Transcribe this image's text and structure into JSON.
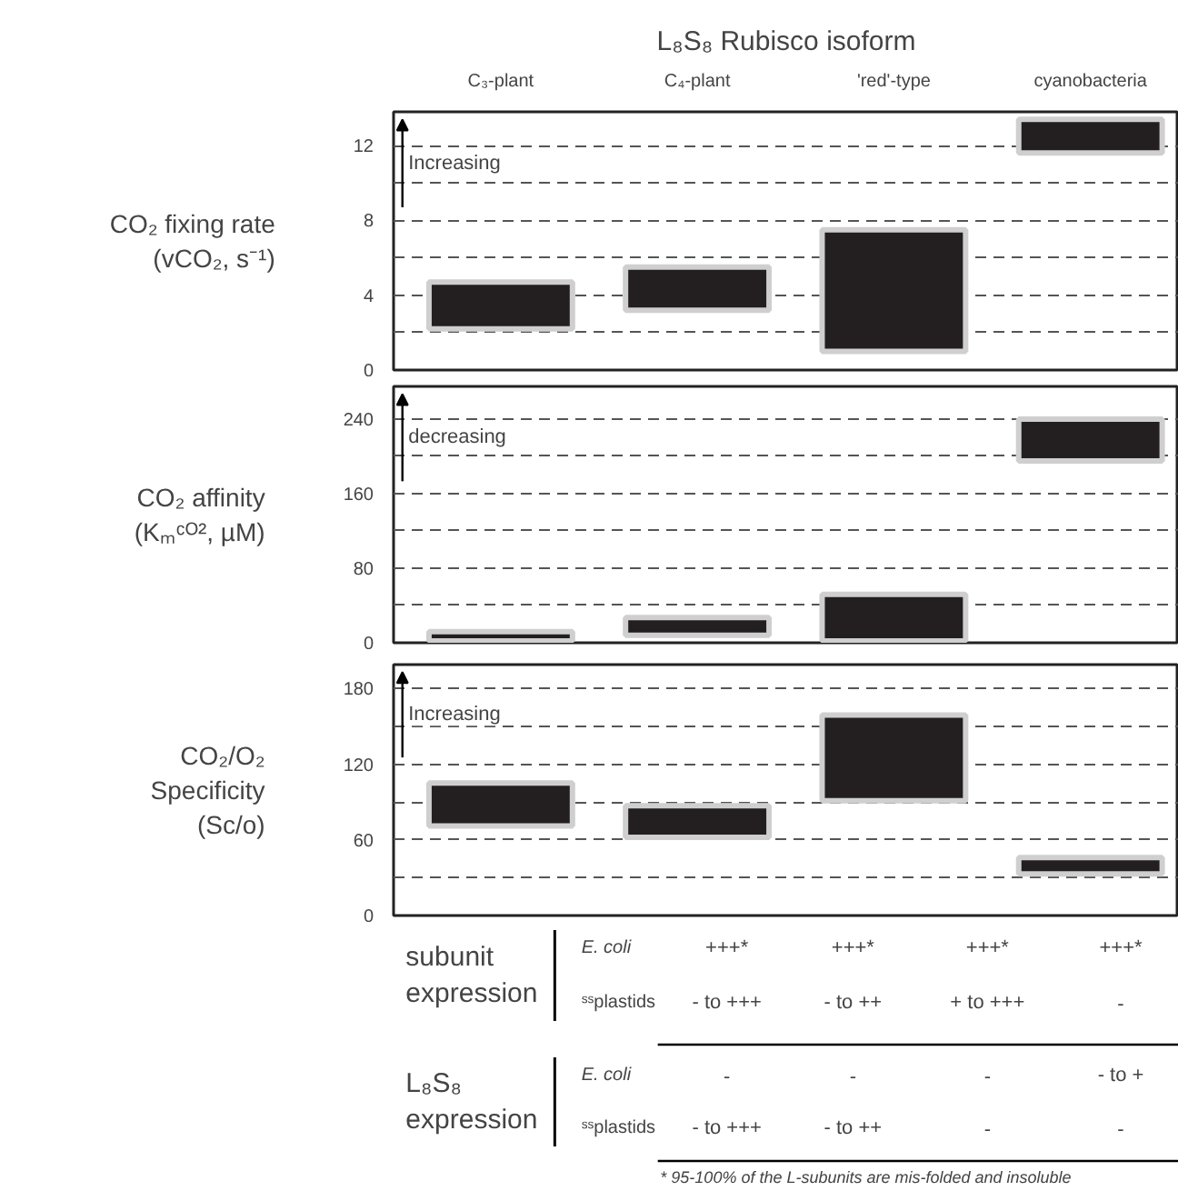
{
  "chart_data": [
    {
      "type": "bar",
      "title": "L₈S₈ Rubisco isoform",
      "categories": [
        "C₃-plant",
        "C₄-plant",
        "'red'-type",
        "cyanobacteria"
      ],
      "ylabel": "CO₂ fixing rate\n(vCO₂, s⁻¹)",
      "base": [
        2.2,
        3.2,
        1.0,
        11.6
      ],
      "values": [
        2.5,
        2.3,
        6.5,
        1.8
      ],
      "color": "#231f20",
      "ylim": [
        0,
        13.8
      ],
      "yticks": [
        0,
        {
          "value": 2,
          "label": null
        },
        4,
        {
          "value": 6,
          "label": null
        },
        8,
        {
          "value": 10,
          "label": null
        },
        12
      ],
      "grid": "y",
      "annotations": [
        "Increasing"
      ]
    },
    {
      "type": "bar",
      "categories": [
        null,
        null,
        null,
        null
      ],
      "ylabel": "CO₂ affinity\n(Kₘᶜᴼ², µM)",
      "base": [
        2,
        8,
        2,
        195
      ],
      "values": [
        10,
        19,
        50,
        45
      ],
      "color": "#231f20",
      "ylim": [
        0,
        275
      ],
      "yticks": [
        0,
        {
          "value": 40,
          "label": null
        },
        80,
        {
          "value": 120,
          "label": null
        },
        160,
        {
          "value": 200,
          "label": null
        },
        240
      ],
      "grid": "y",
      "tick_labels": "y",
      "annotations": [
        "decreasing"
      ]
    },
    {
      "type": "bar",
      "categories": [
        null,
        null,
        null,
        null
      ],
      "ylabel": "CO₂/O₂\nSpecificity\n(Sc/o)",
      "base": [
        71,
        62,
        91,
        33
      ],
      "values": [
        34,
        25,
        68,
        13
      ],
      "color": "#231f20",
      "ylim": [
        0,
        199
      ],
      "yticks": [
        0,
        {
          "value": 30,
          "label": null
        },
        60,
        {
          "value": 90,
          "label": null
        },
        120,
        {
          "value": 150,
          "label": null
        },
        180
      ],
      "grid": "y",
      "tick_labels": "y",
      "annotations": [
        "Increasing"
      ]
    },
    {
      "type": "other",
      "annotations": [
        "subunit\nexpression",
        "E. coli",
        "+++*",
        "+++*",
        "+++*",
        "+++*",
        "ˢˢplastids",
        "- to +++",
        "- to ++",
        "+ to +++",
        "-",
        "L₈S₈\nexpression",
        "E. coli",
        "-",
        "-",
        "-",
        "- to +",
        "ˢˢplastids",
        "- to +++",
        "- to ++",
        "-",
        "-",
        "* 95-100% of the L-subunits are mis-folded and insoluble"
      ]
    }
  ]
}
